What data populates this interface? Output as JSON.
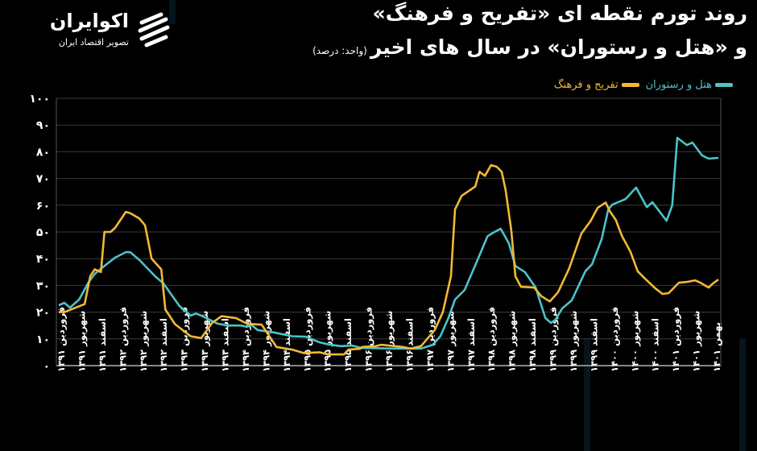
{
  "header": {
    "title_line1": "روند تورم نقطه ای «تفریح و فرهنگ»",
    "title_line2": "و «هتل و رستوران» در سال های اخیر",
    "unit": "(واحد: درصد)"
  },
  "logo": {
    "name": "اکوایران",
    "tagline": "تصویر اقتصاد ایران"
  },
  "chart_data": {
    "type": "line",
    "title": "روند تورم نقطه ای «تفریح و فرهنگ» و «هتل و رستوران» در سال های اخیر",
    "ylabel": "درصد",
    "xlabel": "",
    "ylim": [
      0,
      100
    ],
    "y_ticks": [
      "۰",
      "۱۰",
      "۲۰",
      "۳۰",
      "۴۰",
      "۵۰",
      "۶۰",
      "۷۰",
      "۸۰",
      "۹۰",
      "۱۰۰"
    ],
    "y_tick_values": [
      0,
      10,
      20,
      30,
      40,
      50,
      60,
      70,
      80,
      90,
      100
    ],
    "grid": true,
    "legend_placement": "top-right",
    "x_unit": "month index from Farvardin 1391 (0) to Bahman 1401 (130)",
    "xlim": [
      0,
      130
    ],
    "x_tick_labels": [
      "فروردین ۱۳۹۱",
      "شهریور ۱۳۹۱",
      "اسفند ۱۳۹۱",
      "فروردین ۱۳۹۲",
      "شهریور ۱۳۹۲",
      "اسفند ۱۳۹۲",
      "فروردین ۱۳۹۳",
      "شهریور ۱۳۹۳",
      "اسفند ۱۳۹۳",
      "فروردین ۱۳۹۴",
      "شهریور ۱۳۹۴",
      "اسفند ۱۳۹۴",
      "فروردین ۱۳۹۵",
      "شهریور ۱۳۹۵",
      "اسفند ۱۳۹۵",
      "فروردین ۱۳۹۶",
      "شهریور ۱۳۹۶",
      "اسفند ۱۳۹۶",
      "فروردین ۱۳۹۷",
      "شهریور ۱۳۹۷",
      "اسفند ۱۳۹۷",
      "فروردین ۱۳۹۸",
      "شهریور ۱۳۹۸",
      "اسفند ۱۳۹۸",
      "فروردین ۱۳۹۹",
      "شهریور ۱۳۹۹",
      "اسفند ۱۳۹۹",
      "فروردین ۱۴۰۰",
      "شهریور ۱۴۰۰",
      "اسفند ۱۴۰۰",
      "فروردین ۱۴۰۱",
      "شهریور ۱۴۰۱",
      "بهمن ۱۴۰۱"
    ],
    "series": [
      {
        "name": "هتل و رستوران",
        "color": "#4cc4c8",
        "x": [
          0,
          1.1,
          2.2,
          4,
          5.9,
          7.1,
          9,
          11.1,
          13.3,
          14.1,
          15.9,
          19,
          20.6,
          23.8,
          26,
          27,
          28.1,
          31.3,
          33.3,
          36,
          37.1,
          37.9,
          39.2,
          42.4,
          46,
          48.7,
          51.4,
          53.5,
          55.6,
          57.8,
          59.8,
          66.2,
          71.4,
          73.7,
          75.2,
          76.8,
          78.1,
          80,
          82.5,
          84.5,
          85.6,
          87.1,
          88.7,
          90,
          91.9,
          94,
          95.9,
          97,
          97.9,
          99.2,
          101.1,
          103.8,
          105.1,
          107,
          108.3,
          109.1,
          111.7,
          113.8,
          115.9,
          117,
          119.8,
          120.9,
          121.9,
          123.8,
          124.9,
          126.8,
          128.1,
          130
        ],
        "y": [
          22.6,
          23.5,
          21.7,
          24.7,
          31.3,
          34.3,
          37.3,
          40.4,
          42.5,
          42.4,
          39.5,
          33.4,
          30.8,
          22.3,
          18.7,
          19.5,
          18.7,
          15.7,
          15,
          15,
          14.5,
          15.3,
          13.3,
          12.4,
          11,
          10.8,
          8.7,
          7.8,
          7.3,
          7.5,
          6.6,
          6.4,
          6.4,
          7.8,
          11,
          17.8,
          24.7,
          28.3,
          39.4,
          48.4,
          49.7,
          51.2,
          45.8,
          37.3,
          34.9,
          29.2,
          17.8,
          16,
          17.2,
          21.4,
          24.4,
          35.3,
          37.9,
          47.3,
          58.4,
          60.2,
          62.3,
          66.6,
          59.3,
          61.1,
          54.2,
          59.9,
          85.2,
          82.5,
          83.4,
          78.6,
          77.4,
          77.7
        ]
      },
      {
        "name": "تفریح و فرهنگ",
        "color": "#f2b935",
        "x": [
          0,
          1.1,
          5.1,
          6.2,
          7.1,
          8.3,
          9,
          10.2,
          11.1,
          13.2,
          14.1,
          15.9,
          17,
          18.3,
          20.2,
          21,
          22.9,
          26,
          28.1,
          30.2,
          32.1,
          34.9,
          37.1,
          40,
          42.9,
          46,
          48.3,
          51.4,
          53,
          56.2,
          57.1,
          59.4,
          59.8,
          62.5,
          63.5,
          66.2,
          67.8,
          69.4,
          71.4,
          74.1,
          75.7,
          77.3,
          78.1,
          79.4,
          82.1,
          82.9,
          84,
          85.2,
          86.3,
          87.3,
          88.1,
          89.2,
          90,
          91.1,
          93.7,
          95.1,
          96.8,
          98.4,
          100.6,
          103,
          104.8,
          106.2,
          107.8,
          108.6,
          109.8,
          111,
          112.7,
          114.1,
          115.4,
          117.5,
          119,
          120.2,
          122.2,
          123.8,
          125.4,
          126.5,
          128.1,
          128.9,
          130
        ],
        "y": [
          20,
          20,
          23,
          33.5,
          36,
          35,
          50,
          50,
          51.5,
          57.5,
          57,
          55,
          52.5,
          40,
          36,
          21,
          15.5,
          11,
          10.3,
          16,
          18.5,
          17.8,
          15.7,
          15.3,
          7,
          6,
          4.7,
          5,
          4.2,
          4.2,
          6,
          6.3,
          7,
          7.3,
          7.8,
          7.3,
          7,
          6.4,
          7.3,
          13.3,
          20,
          33.5,
          58.4,
          63.5,
          67,
          72.5,
          71,
          75,
          74.4,
          72.5,
          65.4,
          50.3,
          33.4,
          29.5,
          29.2,
          26,
          24,
          27.4,
          36.4,
          49.4,
          54,
          59,
          61,
          57.8,
          54.5,
          48.5,
          42.5,
          35.3,
          32.8,
          29,
          26.8,
          27.1,
          31,
          31.3,
          31.9,
          31,
          29.2,
          30.7,
          32.2
        ]
      }
    ]
  }
}
